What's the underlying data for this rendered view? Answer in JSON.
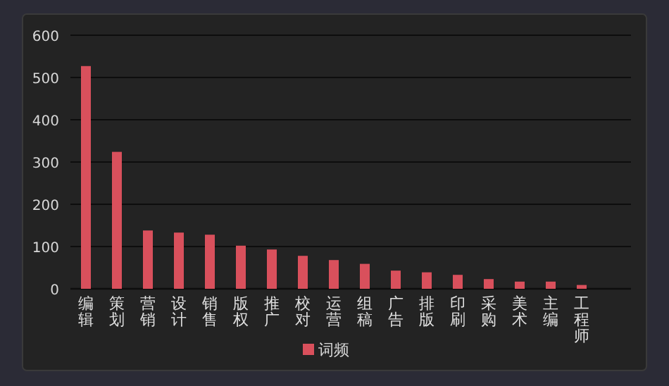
{
  "chart_data": {
    "type": "bar",
    "categories": [
      "编辑",
      "策划",
      "营销",
      "设计",
      "销售",
      "版权",
      "推广",
      "校对",
      "运营",
      "组稿",
      "广告",
      "排版",
      "印刷",
      "采购",
      "美术",
      "主编",
      "工程师"
    ],
    "series": [
      {
        "name": "词频",
        "color": "#d9505c",
        "values": [
          527,
          324,
          138,
          133,
          128,
          102,
          93,
          78,
          68,
          59,
          43,
          39,
          33,
          23,
          17,
          17,
          9
        ]
      }
    ],
    "ylim": [
      0,
      600
    ],
    "yticks": [
      0,
      100,
      200,
      300,
      400,
      500,
      600
    ],
    "grid": "y",
    "legend": "bottom"
  }
}
